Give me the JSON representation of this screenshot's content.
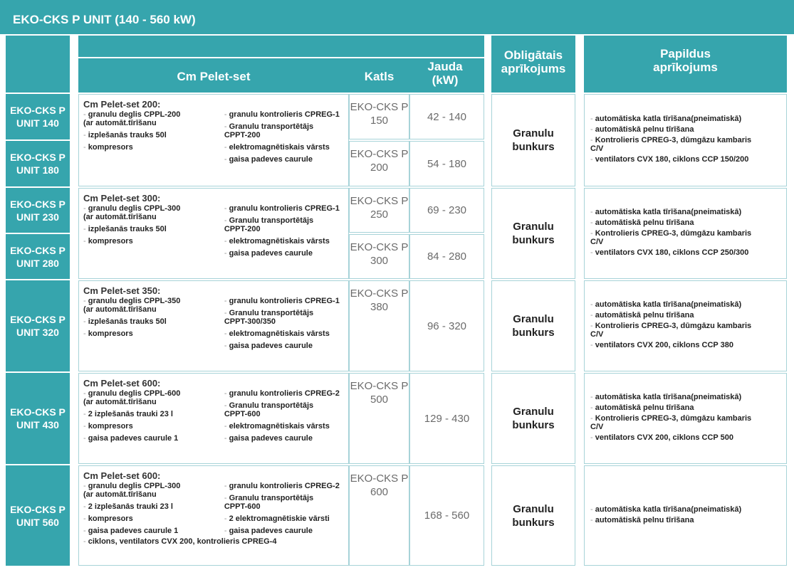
{
  "title": "EKO-CKS P UNIT (140 - 560 kW)",
  "headers": {
    "set": "Cm Pelet-set",
    "boiler": "Katls",
    "power": "Jauda (kW)",
    "obligatory": "Obligātais aprīkojums",
    "extras": "Papildus aprīkojums"
  },
  "groups": [
    {
      "units": [
        {
          "name": [
            "EKO-CKS P",
            "UNIT  140"
          ],
          "boiler": [
            "EKO-CKS P",
            "150"
          ],
          "power": "42 - 140"
        },
        {
          "name": [
            "EKO-CKS P",
            "UNIT  180"
          ],
          "boiler": [
            "EKO-CKS P",
            "200"
          ],
          "power": "54 - 180"
        }
      ],
      "set": {
        "title": "Cm Pelet-set 200:",
        "left": [
          "granulu deglis CPPL-200\n(ar automāt.tīrīšanu",
          "izplešanās trauks 50l",
          "kompresors"
        ],
        "right": [
          "granulu kontrolieris CPREG-1",
          "Granulu transportētājs\nCPPT-200",
          "elektromagnētiskais vārsts",
          "gaisa padeves caurule"
        ]
      },
      "obligatory": "Granulu bunkurs",
      "extras": [
        "automātiska katla tīrīšana(pneimatiskā)",
        "automātiskā pelnu tīrīšana",
        "Kontrolieris CPREG-3, dūmgāzu kambaris\nC/V",
        "ventilators CVX 180, ciklons CCP 150/200"
      ]
    },
    {
      "units": [
        {
          "name": [
            "EKO-CKS P",
            "UNIT  230"
          ],
          "boiler": [
            "EKO-CKS P",
            "250"
          ],
          "power": "69 - 230"
        },
        {
          "name": [
            "EKO-CKS P",
            "UNIT  280"
          ],
          "boiler": [
            "EKO-CKS P",
            "300"
          ],
          "power": "84 - 280"
        }
      ],
      "set": {
        "title": "Cm Pelet-set 300:",
        "left": [
          "granulu deglis CPPL-300\n(ar automāt.tīrīšanu",
          "izplešanās trauks 50l",
          "kompresors"
        ],
        "right": [
          "granulu kontrolieris CPREG-1",
          "Granulu transportētājs\nCPPT-200",
          "elektromagnētiskais vārsts",
          "gaisa padeves caurule"
        ]
      },
      "obligatory": "Granulu bunkurs",
      "extras": [
        "automātiska katla tīrīšana(pneimatiskā)",
        "automātiskā pelnu tīrīšana",
        "Kontrolieris CPREG-3, dūmgāzu kambaris\nC/V",
        "ventilators CVX 180, ciklons CCP 250/300"
      ]
    },
    {
      "units": [
        {
          "name": [
            "EKO-CKS P",
            "UNIT  320"
          ],
          "boiler": [
            "EKO-CKS P",
            "380"
          ],
          "power": "96 - 320"
        }
      ],
      "set": {
        "title": "Cm Pelet-set 350:",
        "left": [
          "granulu deglis CPPL-350\n(ar automāt.tīrīšanu",
          "izplešanās trauks 50l",
          "kompresors"
        ],
        "right": [
          "granulu kontrolieris CPREG-1",
          "Granulu transportētājs\nCPPT-300/350",
          "elektromagnētiskais vārsts",
          "gaisa padeves caurule"
        ]
      },
      "obligatory": "Granulu bunkurs",
      "extras": [
        "automātiska katla tīrīšana(pneimatiskā)",
        "automātiskā pelnu tīrīšana",
        "Kontrolieris CPREG-3, dūmgāzu kambaris\nC/V",
        "ventilators CVX 200, ciklons CCP 380"
      ]
    },
    {
      "units": [
        {
          "name": [
            "EKO-CKS P",
            "UNIT  430"
          ],
          "boiler": [
            "EKO-CKS P",
            "500"
          ],
          "power": "129 - 430"
        }
      ],
      "set": {
        "title": "Cm Pelet-set 600:",
        "left": [
          "granulu deglis CPPL-600\n(ar automāt.tīrīšanu",
          "2 izplešanās trauki 23 l",
          "kompresors",
          "gaisa padeves caurule 1"
        ],
        "right": [
          "granulu kontrolieris CPREG-2",
          "Granulu transportētājs\nCPPT-600",
          "elektromagnētiskais vārsts",
          "gaisa padeves caurule"
        ]
      },
      "obligatory": "Granulu bunkurs",
      "extras": [
        "automātiska katla tīrīšana(pneimatiskā)",
        "automātiskā pelnu tīrīšana",
        "Kontrolieris CPREG-3, dūmgāzu kambaris\nC/V",
        "ventilators CVX 200, ciklons CCP 500"
      ]
    },
    {
      "units": [
        {
          "name": [
            "EKO-CKS P",
            "UNIT  560"
          ],
          "boiler": [
            "EKO-CKS P",
            "600"
          ],
          "power": "168 - 560"
        }
      ],
      "set": {
        "title": "Cm Pelet-set 600:",
        "left": [
          "granulu deglis CPPL-300\n(ar automāt.tīrīšanu",
          "2 izplešanās trauki 23 l",
          "kompresors",
          "gaisa padeves caurule 1"
        ],
        "right": [
          "granulu kontrolieris CPREG-2",
          "Granulu transportētājs\nCPPT-600",
          "2 elektromagnētiskie vārsti",
          "gaisa padeves caurule"
        ],
        "footer": "ciklons, ventilators CVX 200, kontrolieris CPREG-4"
      },
      "obligatory": "Granulu bunkurs",
      "extras": [
        "automātiska katla tīrīšana(pneimatiskā)",
        "automātiskā pelnu tīrīšana"
      ]
    }
  ]
}
